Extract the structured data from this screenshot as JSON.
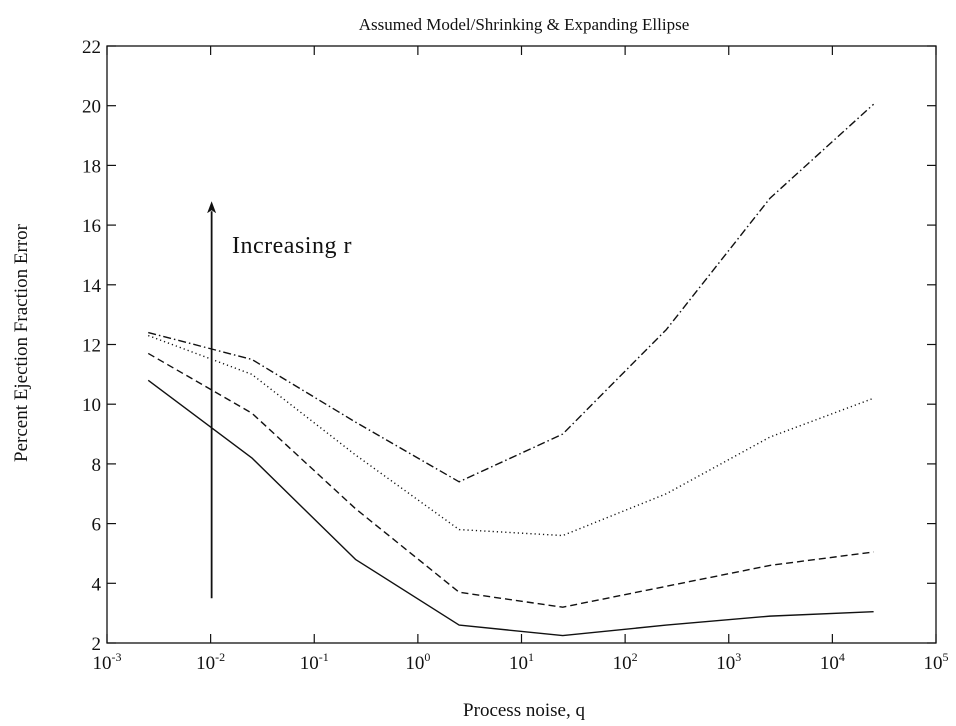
{
  "chart_data": {
    "type": "line",
    "title": "Assumed Model/Shrinking & Expanding Ellipse",
    "xlabel": "Process noise, q",
    "ylabel": "Percent Ejection Fraction Error",
    "xscale": "log",
    "xlim": [
      0.001,
      100000
    ],
    "ylim": [
      2,
      22
    ],
    "grid": false,
    "x_ticks": [
      {
        "base": "10",
        "exp": "-3",
        "value": 0.001
      },
      {
        "base": "10",
        "exp": "-2",
        "value": 0.01
      },
      {
        "base": "10",
        "exp": "-1",
        "value": 0.1
      },
      {
        "base": "10",
        "exp": "0",
        "value": 1
      },
      {
        "base": "10",
        "exp": "1",
        "value": 10
      },
      {
        "base": "10",
        "exp": "2",
        "value": 100
      },
      {
        "base": "10",
        "exp": "3",
        "value": 1000
      },
      {
        "base": "10",
        "exp": "4",
        "value": 10000
      },
      {
        "base": "10",
        "exp": "5",
        "value": 100000
      }
    ],
    "y_ticks": [
      2,
      4,
      6,
      8,
      10,
      12,
      14,
      16,
      18,
      20,
      22
    ],
    "x": [
      0.0025,
      0.025,
      0.25,
      2.5,
      25,
      250,
      2500,
      25000
    ],
    "series": [
      {
        "style": "solid",
        "values": [
          10.8,
          8.2,
          4.8,
          2.6,
          2.25,
          2.6,
          2.9,
          3.05
        ]
      },
      {
        "style": "dashed",
        "values": [
          11.7,
          9.7,
          6.5,
          3.7,
          3.2,
          3.9,
          4.6,
          5.05
        ]
      },
      {
        "style": "dotted",
        "values": [
          12.3,
          11.0,
          8.3,
          5.8,
          5.6,
          7.0,
          8.9,
          10.2
        ]
      },
      {
        "style": "dash-dot",
        "values": [
          12.4,
          11.5,
          9.4,
          7.4,
          9.0,
          12.5,
          16.9,
          20.05
        ]
      }
    ],
    "annotations": [
      {
        "text": "Increasing r",
        "arrow": {
          "x": 0.01,
          "from": 3.5,
          "to": 16.8
        }
      }
    ]
  }
}
